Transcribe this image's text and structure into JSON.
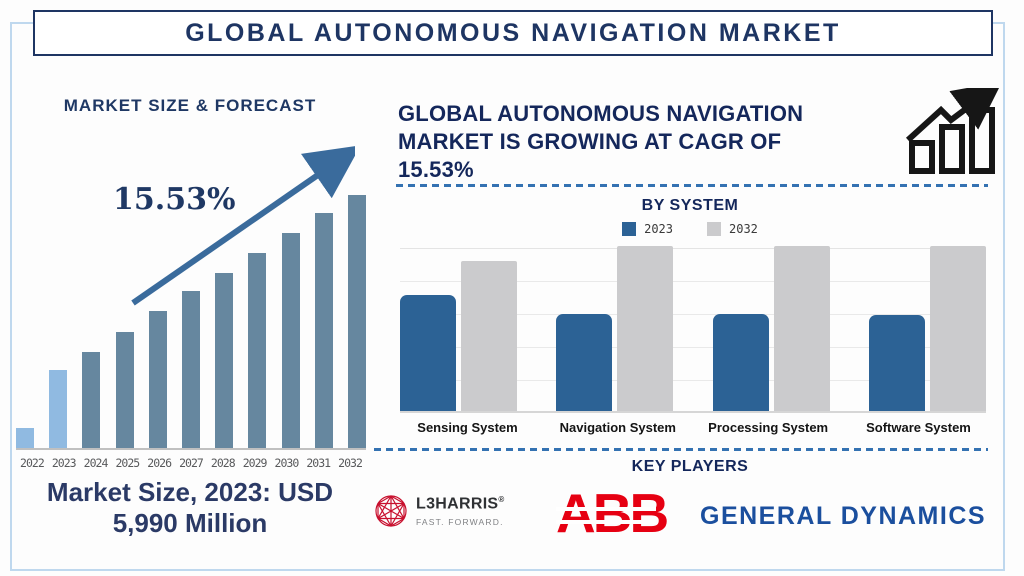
{
  "header": {
    "title": "GLOBAL AUTONOMOUS NAVIGATION MARKET"
  },
  "left_panel": {
    "title": "MARKET SIZE & FORECAST",
    "cagr_label": "15.53%",
    "caption": {
      "line1": "Market Size, 2023: USD",
      "line2": "5,990 Million"
    }
  },
  "right_panel": {
    "heading": "GLOBAL AUTONOMOUS NAVIGATION MARKET IS GROWING AT CAGR OF 15.53%",
    "by_system": {
      "title": "BY SYSTEM",
      "legend": [
        "2023",
        "2032"
      ]
    },
    "key_players": {
      "title": "KEY PLAYERS",
      "l3harris": {
        "name": "L3HARRIS",
        "reg_mark": "®",
        "tagline": "FAST. FORWARD."
      },
      "abb": {
        "name": "ABB"
      },
      "general_dynamics": {
        "name": "GENERAL DYNAMICS"
      }
    }
  },
  "colors": {
    "navy_text": "#1E3563",
    "frame_light_blue": "#BFD8EE",
    "dashed_line_blue": "#3472B2",
    "left_bar_highlight": "#90BAE1",
    "left_bar_default": "#66879F",
    "trend_arrow": "#3A6B9C",
    "right_bar_2023": "#2C6295",
    "right_bar_2032": "#CBCBCD",
    "abb_red": "#E60012",
    "l3harris_red": "#C8102E",
    "general_dynamics_blue": "#1B4F9E"
  },
  "chart_data": [
    {
      "type": "bar",
      "title": "MARKET SIZE & FORECAST",
      "x": [
        "2022",
        "2023",
        "2024",
        "2025",
        "2026",
        "2027",
        "2028",
        "2029",
        "2030",
        "2031",
        "2032"
      ],
      "values_relative": [
        8,
        31,
        38,
        46,
        54,
        62,
        69,
        77,
        85,
        93,
        100
      ],
      "value_axis": "none shown (stylized heights, 2032 = 100)",
      "known_values": {
        "2023": "USD 5,990 Million"
      },
      "cagr": "15.53%",
      "highlight_first_n": 2,
      "colors": {
        "highlight": "#90BAE1",
        "default": "#66879F"
      },
      "annotations": [
        "15.53%",
        "upward trend arrow"
      ],
      "xlabel": "",
      "ylabel": "",
      "grid": false
    },
    {
      "type": "grouped-bar",
      "title": "BY SYSTEM",
      "categories": [
        "Sensing System",
        "Navigation System",
        "Processing System",
        "Software System"
      ],
      "series": [
        {
          "name": "2023",
          "color": "#2C6295",
          "values_relative": [
            70,
            59,
            59,
            58
          ]
        },
        {
          "name": "2032",
          "color": "#CBCBCD",
          "values_relative": [
            91,
            100,
            100,
            100
          ]
        }
      ],
      "value_axis": "none shown (relative heights, max = 100)",
      "legend_position": "top-center",
      "grid": "horizontal",
      "xlabel": "",
      "ylabel": ""
    }
  ]
}
